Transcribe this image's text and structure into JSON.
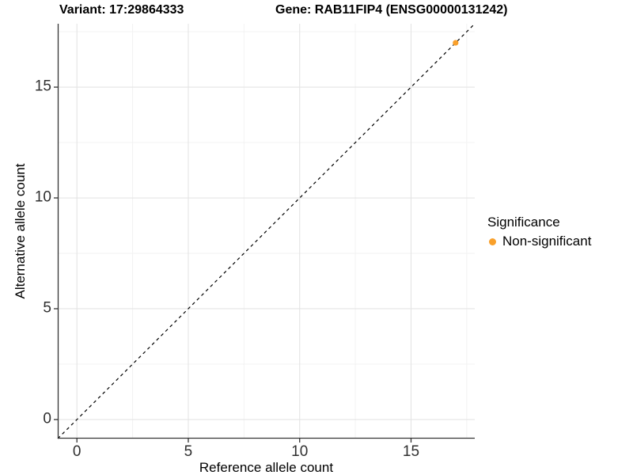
{
  "titles": {
    "variant": "Variant: 17:29864333",
    "gene": "Gene: RAB11FIP4 (ENSG00000131242)"
  },
  "axes": {
    "x_label": "Reference allele count",
    "y_label": "Alternative allele count"
  },
  "legend": {
    "title": "Significance",
    "items": [
      {
        "label": "Non-significant",
        "color": "#F9A02B"
      }
    ]
  },
  "colors": {
    "point_orange": "#F9A02B",
    "grid_major": "#E4E4E4",
    "grid_minor": "#F1F1F1",
    "axis_line": "#333333",
    "tick_label": "#303030",
    "reference_line": "#000000"
  },
  "chart_data": {
    "type": "scatter",
    "title": "Variant: 17:29864333 | Gene: RAB11FIP4 (ENSG00000131242)",
    "xlabel": "Reference allele count",
    "ylabel": "Alternative allele count",
    "xlim": [
      -0.86,
      17.86
    ],
    "ylim": [
      -0.86,
      17.86
    ],
    "x_ticks": [
      0,
      5,
      10,
      15
    ],
    "y_ticks": [
      0,
      5,
      10,
      15
    ],
    "x_minor_ticks": [
      2.5,
      7.5,
      12.5,
      17.5
    ],
    "y_minor_ticks": [
      2.5,
      7.5,
      12.5,
      17.5
    ],
    "grid": true,
    "legend_position": "right",
    "series": [
      {
        "name": "Non-significant",
        "color": "#F9A02B",
        "points": [
          {
            "x": 17,
            "y": 17
          }
        ]
      }
    ],
    "reference_line": {
      "type": "abline",
      "slope": 1,
      "intercept": 0,
      "style": "dashed",
      "color": "#000000"
    }
  }
}
